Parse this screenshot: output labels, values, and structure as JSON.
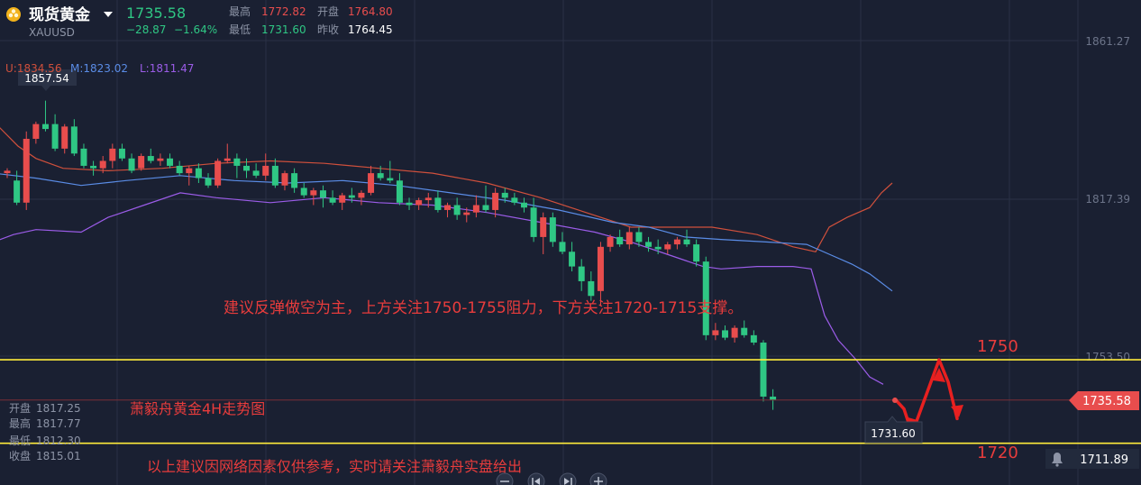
{
  "header": {
    "coin_icon": "gold-coin-icon",
    "title": "现货黄金",
    "symbol": "XAUUSD",
    "price": "1735.58",
    "change": "−28.87",
    "change_pct": "−1.64%",
    "high_label": "最高",
    "high_value": "1772.82",
    "open_label": "开盘",
    "open_value": "1764.80",
    "low_label": "最低",
    "low_value": "1731.60",
    "prev_label": "昨收",
    "prev_value": "1764.45"
  },
  "legend": {
    "u": "U:1834.56",
    "m": "M:1823.02",
    "l": "L:1811.47"
  },
  "ohlc": [
    {
      "label": "开盘",
      "value": "1817.25"
    },
    {
      "label": "最高",
      "value": "1817.77"
    },
    {
      "label": "最低",
      "value": "1812.30"
    },
    {
      "label": "收盘",
      "value": "1815.01"
    }
  ],
  "annotations": {
    "advice": "建议反弹做空为主，上方关注1750-1755阻力，下方关注1720-1715支撑。",
    "title": "萧毅舟黄金4H走势图",
    "disclaimer": "以上建议因网络因素仅供参考，实时请关注萧毅舟实盘给出",
    "level_1750": "1750",
    "level_1720": "1720"
  },
  "bottom": {
    "bell_icon": "bell-icon",
    "value": "1711.89"
  },
  "colors": {
    "background": "#1a2032",
    "up": "#e84d4d",
    "down": "#2fc784",
    "upper_band": "#d0503c",
    "middle_band": "#5a8ce6",
    "lower_band": "#9b5ce8",
    "level_line": "#ffeb3b",
    "annotation_text": "#e83c3c"
  },
  "chart_data": {
    "type": "candlestick",
    "y_axis_ticks": [
      "1861.27",
      "1817.39",
      "1753.50"
    ],
    "ylim": [
      1705,
      1870
    ],
    "max_label": "1857.54",
    "min_label": "1731.60",
    "last_price_label": "1735.58",
    "current_price_line": 1735.58,
    "horizontal_levels": [
      1752,
      1718
    ],
    "candles": [
      [
        1828,
        1830,
        1826,
        1829
      ],
      [
        1825,
        1829,
        1815,
        1816
      ],
      [
        1816,
        1845,
        1813,
        1842
      ],
      [
        1842,
        1849,
        1840,
        1848
      ],
      [
        1848,
        1857.54,
        1845,
        1846
      ],
      [
        1848,
        1852,
        1837,
        1838
      ],
      [
        1838,
        1848,
        1836,
        1847
      ],
      [
        1847,
        1850,
        1835,
        1836
      ],
      [
        1838,
        1840,
        1830,
        1831
      ],
      [
        1831,
        1833,
        1827,
        1830
      ],
      [
        1830,
        1835,
        1828,
        1833
      ],
      [
        1833,
        1840,
        1830,
        1838
      ],
      [
        1838,
        1840,
        1833,
        1834
      ],
      [
        1834,
        1836,
        1828,
        1829
      ],
      [
        1830,
        1836,
        1829,
        1835
      ],
      [
        1835,
        1838,
        1832,
        1833
      ],
      [
        1833,
        1836,
        1831,
        1834
      ],
      [
        1834,
        1836,
        1830,
        1831
      ],
      [
        1831,
        1833,
        1827,
        1828
      ],
      [
        1828,
        1831,
        1823,
        1830
      ],
      [
        1830,
        1832,
        1824,
        1826
      ],
      [
        1826,
        1828,
        1822,
        1823
      ],
      [
        1823,
        1834,
        1822,
        1833
      ],
      [
        1833,
        1840,
        1832,
        1834
      ],
      [
        1834,
        1836,
        1826,
        1831
      ],
      [
        1831,
        1834,
        1826,
        1829
      ],
      [
        1829,
        1832,
        1826,
        1827
      ],
      [
        1827,
        1836,
        1825,
        1831
      ],
      [
        1831,
        1834,
        1822,
        1823
      ],
      [
        1823,
        1829,
        1821,
        1828
      ],
      [
        1828,
        1830,
        1820,
        1822
      ],
      [
        1822,
        1824,
        1818,
        1819
      ],
      [
        1819,
        1822,
        1815,
        1821
      ],
      [
        1821,
        1823,
        1814,
        1818
      ],
      [
        1818,
        1821,
        1815,
        1816
      ],
      [
        1816,
        1820,
        1813,
        1819
      ],
      [
        1819,
        1822,
        1816,
        1818
      ],
      [
        1818,
        1821,
        1815,
        1820
      ],
      [
        1820,
        1831,
        1819,
        1828
      ],
      [
        1828,
        1831,
        1825,
        1826
      ],
      [
        1826,
        1833,
        1824,
        1825
      ],
      [
        1825,
        1828,
        1815,
        1816
      ],
      [
        1816,
        1818,
        1813,
        1815
      ],
      [
        1815,
        1818,
        1813,
        1817
      ],
      [
        1817,
        1820,
        1814,
        1818
      ],
      [
        1818,
        1821,
        1812,
        1813
      ],
      [
        1813,
        1816,
        1810,
        1815
      ],
      [
        1815,
        1818,
        1809,
        1811
      ],
      [
        1811,
        1814,
        1808,
        1812
      ],
      [
        1812,
        1819,
        1810,
        1815
      ],
      [
        1815,
        1823,
        1812,
        1813
      ],
      [
        1813,
        1822,
        1810,
        1820
      ],
      [
        1820,
        1822,
        1816,
        1818
      ],
      [
        1818,
        1820,
        1815,
        1816
      ],
      [
        1816,
        1818,
        1812,
        1814
      ],
      [
        1814,
        1818,
        1800,
        1802
      ],
      [
        1802,
        1812,
        1795,
        1810
      ],
      [
        1810,
        1812,
        1798,
        1800
      ],
      [
        1800,
        1804,
        1795,
        1796
      ],
      [
        1796,
        1800,
        1788,
        1790
      ],
      [
        1790,
        1793,
        1780,
        1784
      ],
      [
        1784,
        1788,
        1776,
        1778
      ],
      [
        1780,
        1800,
        1774,
        1798
      ],
      [
        1798,
        1803,
        1796,
        1802
      ],
      [
        1802,
        1805,
        1798,
        1799
      ],
      [
        1799,
        1806,
        1797,
        1804
      ],
      [
        1804,
        1806,
        1798,
        1800
      ],
      [
        1800,
        1802,
        1796,
        1798
      ],
      [
        1798,
        1801,
        1795,
        1797
      ],
      [
        1797,
        1800,
        1795,
        1799
      ],
      [
        1799,
        1802,
        1797,
        1801
      ],
      [
        1801,
        1805,
        1798,
        1799
      ],
      [
        1799,
        1801,
        1790,
        1792
      ],
      [
        1792,
        1794,
        1760,
        1762
      ],
      [
        1762,
        1767,
        1760,
        1764
      ],
      [
        1764,
        1766,
        1760,
        1761
      ],
      [
        1761,
        1766,
        1759,
        1765
      ],
      [
        1765,
        1768,
        1761,
        1762
      ],
      [
        1762,
        1764,
        1758,
        1759
      ],
      [
        1759,
        1760,
        1735,
        1737
      ],
      [
        1737,
        1740,
        1731.6,
        1735.58
      ]
    ],
    "upper_band": [
      [
        -7,
        1849
      ],
      [
        20,
        1839
      ],
      [
        40,
        1834
      ],
      [
        70,
        1830
      ],
      [
        120,
        1829
      ],
      [
        180,
        1830
      ],
      [
        240,
        1832
      ],
      [
        300,
        1833
      ],
      [
        360,
        1832
      ],
      [
        420,
        1830
      ],
      [
        480,
        1828
      ],
      [
        540,
        1824
      ],
      [
        600,
        1818
      ],
      [
        650,
        1812
      ],
      [
        700,
        1806
      ],
      [
        740,
        1806
      ],
      [
        790,
        1806
      ],
      [
        840,
        1803
      ],
      [
        880,
        1798
      ],
      [
        905,
        1796
      ],
      [
        920,
        1806
      ],
      [
        940,
        1810
      ],
      [
        965,
        1814
      ],
      [
        978,
        1820
      ],
      [
        990,
        1824
      ]
    ],
    "middle_band": [
      [
        -7,
        1828
      ],
      [
        40,
        1826
      ],
      [
        90,
        1823
      ],
      [
        140,
        1825
      ],
      [
        200,
        1827
      ],
      [
        260,
        1825
      ],
      [
        320,
        1824
      ],
      [
        380,
        1825
      ],
      [
        440,
        1823
      ],
      [
        500,
        1820
      ],
      [
        560,
        1817
      ],
      [
        620,
        1813
      ],
      [
        680,
        1808
      ],
      [
        720,
        1806
      ],
      [
        760,
        1802
      ],
      [
        800,
        1801
      ],
      [
        850,
        1800
      ],
      [
        895,
        1799
      ],
      [
        920,
        1795
      ],
      [
        945,
        1791
      ],
      [
        965,
        1787
      ],
      [
        990,
        1780
      ]
    ],
    "lower_band": [
      [
        -7,
        1800
      ],
      [
        15,
        1803
      ],
      [
        40,
        1805
      ],
      [
        90,
        1804
      ],
      [
        120,
        1810
      ],
      [
        160,
        1815
      ],
      [
        200,
        1820
      ],
      [
        240,
        1818
      ],
      [
        300,
        1816
      ],
      [
        360,
        1818
      ],
      [
        420,
        1816
      ],
      [
        480,
        1815
      ],
      [
        540,
        1812
      ],
      [
        600,
        1808
      ],
      [
        660,
        1804
      ],
      [
        700,
        1800
      ],
      [
        740,
        1795
      ],
      [
        780,
        1790
      ],
      [
        800,
        1789
      ],
      [
        840,
        1790
      ],
      [
        880,
        1790
      ],
      [
        900,
        1789
      ],
      [
        915,
        1770
      ],
      [
        930,
        1760
      ],
      [
        950,
        1752
      ],
      [
        965,
        1745
      ],
      [
        980,
        1742
      ]
    ],
    "arrow_path": [
      [
        993,
        1736
      ],
      [
        1003,
        1732
      ],
      [
        1012,
        1722
      ],
      [
        1025,
        1735
      ],
      [
        1042,
        1752
      ],
      [
        1052,
        1743
      ],
      [
        1062,
        1728
      ]
    ]
  }
}
